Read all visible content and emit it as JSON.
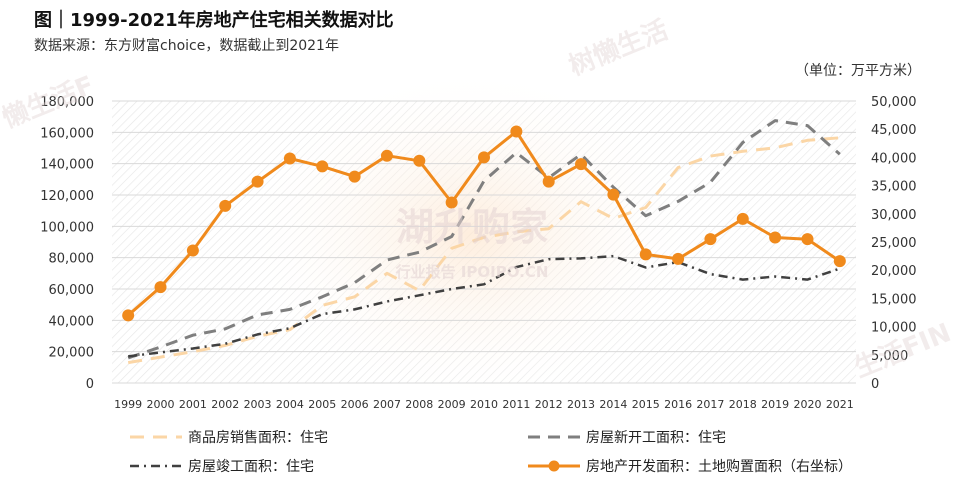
{
  "header": {
    "title": "图｜1999-2021年房地产住宅相关数据对比",
    "source": "数据来源：东方财富choice，数据截止到2021年",
    "unit": "（单位：万平方米）"
  },
  "watermarks": {
    "center_main": "湖升购家",
    "center_sub": "行业报告 IPOIPO.CN",
    "corner_top_right": "树懒生活",
    "corner_top_left": "懒生活F",
    "corner_bottom_right": "生活FIN"
  },
  "colors": {
    "sales": "#fbd6a6",
    "starts": "#7f7f7f",
    "completions": "#404040",
    "land": "#f08a1c",
    "grid": "#d9d9d9",
    "hatch": "#e4e4e4"
  },
  "chart_data": {
    "type": "line",
    "categories": [
      "1999",
      "2000",
      "2001",
      "2002",
      "2003",
      "2004",
      "2005",
      "2006",
      "2007",
      "2008",
      "2009",
      "2010",
      "2011",
      "2012",
      "2013",
      "2014",
      "2015",
      "2016",
      "2017",
      "2018",
      "2019",
      "2020",
      "2021"
    ],
    "y_left": {
      "min": 0,
      "max": 180000,
      "step": 20000,
      "ticks": [
        "0",
        "20,000",
        "40,000",
        "60,000",
        "80,000",
        "100,000",
        "120,000",
        "140,000",
        "160,000",
        "180,000"
      ]
    },
    "y_right": {
      "min": 0,
      "max": 50000,
      "step": 5000,
      "ticks": [
        "0",
        "5,000",
        "10,000",
        "15,000",
        "20,000",
        "25,000",
        "30,000",
        "35,000",
        "40,000",
        "45,000",
        "50,000"
      ]
    },
    "grid": true,
    "legend_position": "bottom",
    "series": [
      {
        "name": "商品房销售面积：住宅",
        "axis": "left",
        "style": "dash",
        "values": [
          13000,
          16500,
          20000,
          24000,
          29800,
          34000,
          49500,
          55000,
          70000,
          59000,
          86000,
          93000,
          96500,
          98500,
          115700,
          105000,
          112000,
          137500,
          144800,
          147900,
          150100,
          154900,
          156500
        ]
      },
      {
        "name": "房屋新开工面积：住宅",
        "axis": "left",
        "style": "dash",
        "values": [
          16000,
          23000,
          30500,
          34500,
          43500,
          47000,
          55000,
          64000,
          78500,
          83500,
          93500,
          129000,
          147000,
          131000,
          146000,
          124900,
          106700,
          115900,
          128100,
          153500,
          167500,
          164300,
          146000
        ]
      },
      {
        "name": "房屋竣工面积：住宅",
        "axis": "left",
        "style": "dashdot",
        "values": [
          17000,
          19500,
          22000,
          25000,
          31000,
          35000,
          44000,
          47000,
          52000,
          56000,
          60000,
          63000,
          74000,
          79000,
          79500,
          81000,
          73700,
          77200,
          69500,
          66000,
          68000,
          66000,
          73000
        ]
      },
      {
        "name": "房地产开发面积：土地购置面积（右坐标）",
        "axis": "right",
        "style": "solid-marker",
        "values": [
          12000,
          17000,
          23500,
          31400,
          35700,
          39800,
          38400,
          36600,
          40300,
          39400,
          32000,
          40000,
          44600,
          35700,
          38800,
          33400,
          22800,
          22000,
          25500,
          29100,
          25800,
          25500,
          21600
        ]
      }
    ]
  }
}
